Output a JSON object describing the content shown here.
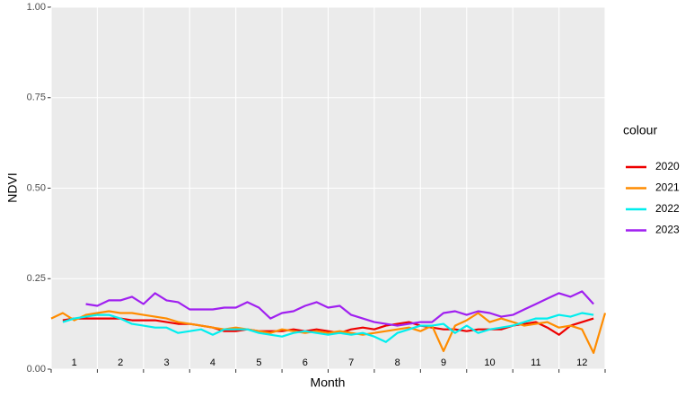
{
  "chart_data": {
    "type": "line",
    "x_label": "Month",
    "y_label": "NDVI",
    "legend_title": "colour",
    "x": [
      0,
      0.25,
      0.5,
      0.75,
      1,
      1.25,
      1.5,
      1.75,
      2,
      2.25,
      2.5,
      2.75,
      3,
      3.25,
      3.5,
      3.75,
      4,
      4.25,
      4.5,
      4.75,
      5,
      5.25,
      5.5,
      5.75,
      6,
      6.25,
      6.5,
      6.75,
      7,
      7.25,
      7.5,
      7.75,
      8,
      8.25,
      8.5,
      8.75,
      9,
      9.25,
      9.5,
      9.75,
      10,
      10.25,
      10.5,
      10.75,
      11,
      11.25,
      11.5,
      11.75,
      12
    ],
    "xlim": [
      0,
      12
    ],
    "xbreaks": [
      0,
      1,
      2,
      3,
      4,
      5,
      6,
      7,
      8,
      9,
      10,
      11,
      12
    ],
    "xticks": [
      {
        "value": 0.5,
        "label": "1"
      },
      {
        "value": 1.5,
        "label": "2"
      },
      {
        "value": 2.5,
        "label": "3"
      },
      {
        "value": 3.5,
        "label": "4"
      },
      {
        "value": 4.5,
        "label": "5"
      },
      {
        "value": 5.5,
        "label": "6"
      },
      {
        "value": 6.5,
        "label": "7"
      },
      {
        "value": 7.5,
        "label": "8"
      },
      {
        "value": 8.5,
        "label": "9"
      },
      {
        "value": 9.5,
        "label": "10"
      },
      {
        "value": 10.5,
        "label": "11"
      },
      {
        "value": 11.5,
        "label": "12"
      }
    ],
    "ylim": [
      0,
      1
    ],
    "yticks": [
      {
        "value": 0,
        "label": "0.00"
      },
      {
        "value": 0.25,
        "label": "0.25"
      },
      {
        "value": 0.5,
        "label": "0.50"
      },
      {
        "value": 0.75,
        "label": "0.75"
      },
      {
        "value": 1,
        "label": "1.00"
      }
    ],
    "grid": true,
    "legend_position": "right",
    "series": [
      {
        "name": "2020",
        "color": "#ee0000",
        "values": [
          null,
          0.135,
          0.14,
          0.14,
          0.14,
          0.14,
          0.14,
          0.135,
          0.135,
          0.135,
          0.13,
          0.125,
          0.125,
          0.12,
          0.115,
          0.105,
          0.105,
          0.11,
          0.105,
          0.105,
          0.105,
          0.11,
          0.105,
          0.11,
          0.105,
          0.1,
          0.11,
          0.115,
          0.11,
          0.12,
          0.125,
          0.13,
          0.12,
          0.115,
          0.11,
          0.11,
          0.105,
          0.11,
          0.11,
          0.11,
          0.12,
          0.125,
          0.13,
          0.115,
          0.095,
          0.12,
          0.13,
          0.14,
          null
        ]
      },
      {
        "name": "2021",
        "color": "#ff8c00",
        "values": [
          0.14,
          0.155,
          0.135,
          0.15,
          0.155,
          0.16,
          0.155,
          0.155,
          0.15,
          0.145,
          0.14,
          0.13,
          0.125,
          0.12,
          0.115,
          0.11,
          0.115,
          0.11,
          0.105,
          0.1,
          0.11,
          0.105,
          0.1,
          0.105,
          0.1,
          0.105,
          0.1,
          0.095,
          0.1,
          0.105,
          0.11,
          0.115,
          0.105,
          0.12,
          0.05,
          0.12,
          0.135,
          0.155,
          0.13,
          0.14,
          0.13,
          0.12,
          0.125,
          0.13,
          0.115,
          0.12,
          0.11,
          0.045,
          0.155
        ]
      },
      {
        "name": "2022",
        "color": "#00eeee",
        "values": [
          null,
          0.13,
          0.14,
          0.145,
          0.15,
          0.15,
          0.14,
          0.125,
          0.12,
          0.115,
          0.115,
          0.1,
          0.105,
          0.11,
          0.095,
          0.11,
          0.11,
          0.11,
          0.1,
          0.095,
          0.09,
          0.1,
          0.105,
          0.1,
          0.095,
          0.1,
          0.095,
          0.1,
          0.09,
          0.075,
          0.1,
          0.11,
          0.12,
          0.12,
          0.125,
          0.1,
          0.12,
          0.1,
          0.11,
          0.115,
          0.12,
          0.13,
          0.14,
          0.14,
          0.15,
          0.145,
          0.155,
          0.15,
          null
        ]
      },
      {
        "name": "2023",
        "color": "#a020f0",
        "values": [
          null,
          null,
          null,
          0.18,
          0.175,
          0.19,
          0.19,
          0.2,
          0.18,
          0.21,
          0.19,
          0.185,
          0.165,
          0.165,
          0.165,
          0.17,
          0.17,
          0.185,
          0.17,
          0.14,
          0.155,
          0.16,
          0.175,
          0.185,
          0.17,
          0.175,
          0.15,
          0.14,
          0.13,
          0.125,
          0.12,
          0.125,
          0.13,
          0.13,
          0.155,
          0.16,
          0.15,
          0.16,
          0.155,
          0.145,
          0.15,
          0.165,
          0.18,
          0.195,
          0.21,
          0.2,
          0.215,
          0.18,
          null
        ]
      }
    ]
  }
}
